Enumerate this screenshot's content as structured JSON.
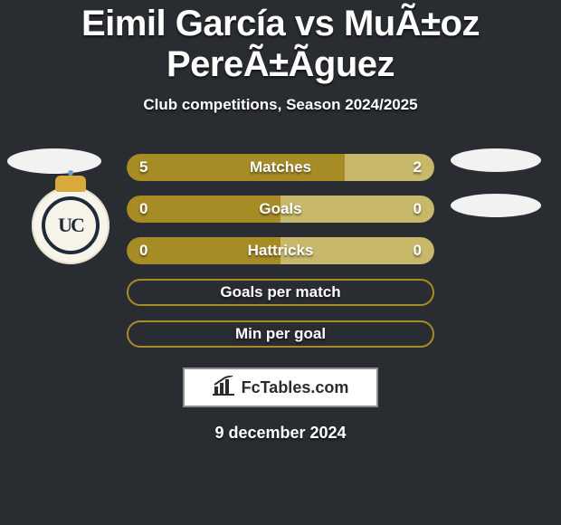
{
  "title": "Eimil García vs MuÃ±oz PereÃ±Ãguez",
  "subtitle": "Club competitions, Season 2024/2025",
  "accent_color": "#a78c26",
  "accent_light": "#c8b86a",
  "background_color": "#292c31",
  "text_color": "#ffffff",
  "rows": [
    {
      "label": "Matches",
      "left": "5",
      "right": "2",
      "left_pct": 71,
      "right_pct": 29,
      "has_values": true,
      "filled": true
    },
    {
      "label": "Goals",
      "left": "0",
      "right": "0",
      "left_pct": 50,
      "right_pct": 50,
      "has_values": true,
      "filled": true
    },
    {
      "label": "Hattricks",
      "left": "0",
      "right": "0",
      "left_pct": 50,
      "right_pct": 50,
      "has_values": true,
      "filled": true
    },
    {
      "label": "Goals per match",
      "left": "",
      "right": "",
      "left_pct": 0,
      "right_pct": 0,
      "has_values": false,
      "filled": false
    },
    {
      "label": "Min per goal",
      "left": "",
      "right": "",
      "left_pct": 0,
      "right_pct": 0,
      "has_values": false,
      "filled": false
    }
  ],
  "crest_text": "UC",
  "logo_text": "FcTables.com",
  "date": "9 december 2024"
}
